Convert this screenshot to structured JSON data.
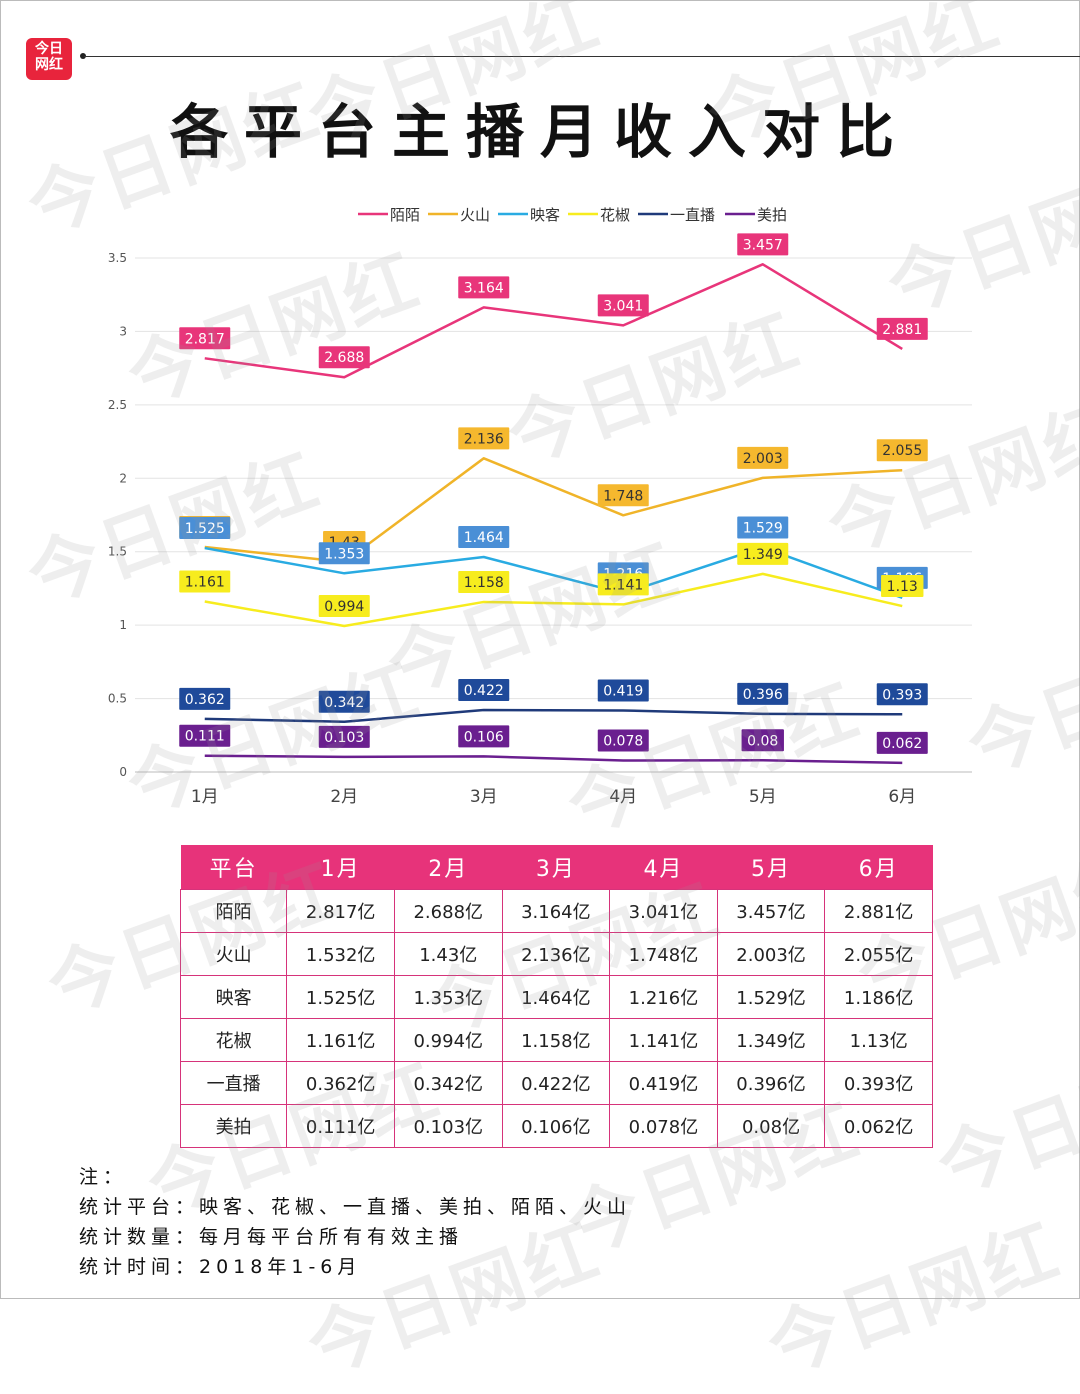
{
  "logo": {
    "line1": "今日",
    "line2": "网红"
  },
  "title": "各平台主播月收入对比",
  "watermark": "今日网红",
  "chart_data": {
    "type": "line",
    "categories": [
      "1月",
      "2月",
      "3月",
      "4月",
      "5月",
      "6月"
    ],
    "ylim": [
      0,
      3.5
    ],
    "yticks": [
      "0",
      "0.5",
      "1",
      "1.5",
      "2",
      "2.5",
      "3",
      "3.5"
    ],
    "grid": true,
    "legend_position": "top",
    "series": [
      {
        "name": "陌陌",
        "color": "#e8357a",
        "values": [
          2.817,
          2.688,
          3.164,
          3.041,
          3.457,
          2.881
        ]
      },
      {
        "name": "火山",
        "color": "#f0b429",
        "values": [
          1.532,
          1.43,
          2.136,
          1.748,
          2.003,
          2.055
        ]
      },
      {
        "name": "映客",
        "color": "#29abe2",
        "values": [
          1.525,
          1.353,
          1.464,
          1.216,
          1.529,
          1.186
        ]
      },
      {
        "name": "花椒",
        "color": "#f7ec1e",
        "values": [
          1.161,
          0.994,
          1.158,
          1.141,
          1.349,
          1.13
        ]
      },
      {
        "name": "一直播",
        "color": "#1f3a7a",
        "values": [
          0.362,
          0.342,
          0.422,
          0.419,
          0.396,
          0.393
        ]
      },
      {
        "name": "美拍",
        "color": "#6a1f8f",
        "values": [
          0.111,
          0.103,
          0.106,
          0.078,
          0.08,
          0.062
        ]
      }
    ],
    "labels": [
      [
        "2.817",
        "2.688",
        "3.164",
        "3.041",
        "3.457",
        "2.881"
      ],
      [
        "1.532",
        "1.43",
        "2.136",
        "1.748",
        "2.003",
        "2.055"
      ],
      [
        "1.525",
        "1.353",
        "1.464",
        "1.216",
        "1.529",
        "1.186"
      ],
      [
        "1.161",
        "0.994",
        "1.158",
        "1.141",
        "1.349",
        "1.13"
      ],
      [
        "0.362",
        "0.342",
        "0.422",
        "0.419",
        "0.396",
        "0.393"
      ],
      [
        "0.111",
        "0.103",
        "0.106",
        "0.078",
        "0.08",
        "0.062"
      ]
    ],
    "label_colors": [
      {
        "bg": "#e8357a",
        "fg": "#ffffff"
      },
      {
        "bg": "#f5b82e",
        "fg": "#333333"
      },
      {
        "bg": "#4a8fd6",
        "fg": "#ffffff"
      },
      {
        "bg": "#f7ec1e",
        "fg": "#333333"
      },
      {
        "bg": "#1f4a9a",
        "fg": "#ffffff"
      },
      {
        "bg": "#6a1f8f",
        "fg": "#ffffff"
      }
    ]
  },
  "table": {
    "headers": [
      "平台",
      "1月",
      "2月",
      "3月",
      "4月",
      "5月",
      "6月"
    ],
    "rows": [
      [
        "陌陌",
        "2.817亿",
        "2.688亿",
        "3.164亿",
        "3.041亿",
        "3.457亿",
        "2.881亿"
      ],
      [
        "火山",
        "1.532亿",
        "1.43亿",
        "2.136亿",
        "1.748亿",
        "2.003亿",
        "2.055亿"
      ],
      [
        "映客",
        "1.525亿",
        "1.353亿",
        "1.464亿",
        "1.216亿",
        "1.529亿",
        "1.186亿"
      ],
      [
        "花椒",
        "1.161亿",
        "0.994亿",
        "1.158亿",
        "1.141亿",
        "1.349亿",
        "1.13亿"
      ],
      [
        "一直播",
        "0.362亿",
        "0.342亿",
        "0.422亿",
        "0.419亿",
        "0.396亿",
        "0.393亿"
      ],
      [
        "美拍",
        "0.111亿",
        "0.103亿",
        "0.106亿",
        "0.078亿",
        "0.08亿",
        "0.062亿"
      ]
    ]
  },
  "notes": [
    "注：",
    "统计平台：映客、花椒、一直播、美拍、陌陌、火山",
    "统计数量：每月每平台所有有效主播",
    "统计时间：2018年1-6月"
  ]
}
